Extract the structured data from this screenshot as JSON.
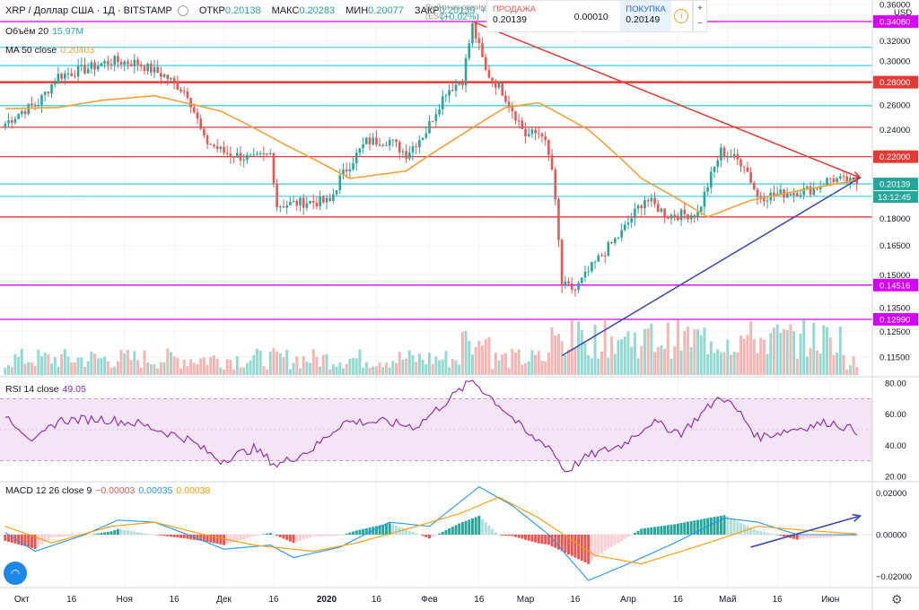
{
  "header": {
    "symbol": "XRP / Доллар США · 1Д · BITSTAMP",
    "open_label": "ОТКР",
    "open": "0.20138",
    "high_label": "МАКС",
    "high": "0.20283",
    "low_label": "МИН",
    "low": "0.20077",
    "close_label": "ЗАКР",
    "close": "0.20139",
    "change": "+0.00",
    "change_pct": "(+0.02%)",
    "esc_hint_line1": "Выйти из режима",
    "esc_hint_line2": "(ESC)"
  },
  "trade_panel": {
    "sell_label": "ПРОДАЖА",
    "sell_price": "0.20139",
    "spread": "0.00010",
    "buy_label": "ПОКУПКА",
    "buy_price": "0.20149",
    "info_symbol": "i",
    "plus": "+",
    "minus": "−"
  },
  "currency": "USD",
  "indicators": {
    "volume": {
      "label": "Объём 20",
      "value": "15.97M"
    },
    "ma": {
      "label": "MA 50 close",
      "value": "0.20403"
    },
    "rsi": {
      "label": "RSI 14 close",
      "value": "49.05"
    },
    "macd": {
      "label": "MACD 12 26 close 9",
      "v1": "−0.00003",
      "v2": "0.00035",
      "v3": "0.00038"
    }
  },
  "colors": {
    "up": "#26a69a",
    "down": "#ef5350",
    "ma": "#f2a13a",
    "red_line": "#e53935",
    "cyan_line": "#4dd0e1",
    "magenta_line": "#d500f9",
    "trend_down": "#e53935",
    "trend_up": "#3949ab",
    "rsi_line": "#8e24aa",
    "rsi_band": "#f3e5f5",
    "macd_line": "#2196f3",
    "signal_line": "#ff9800"
  },
  "chart_data": [
    {
      "type": "candlestick",
      "title": "XRP / Доллар США · 1Д · BITSTAMP",
      "ylim": [
        0.1,
        0.36
      ],
      "y_scale": "log",
      "y_ticks": [
        "0.36000",
        "0.34080",
        "0.32000",
        "0.30000",
        "0.28000",
        "0.26000",
        "0.24000",
        "0.22000",
        "0.20139",
        "0.18000",
        "0.16500",
        "0.15000",
        "0.14516",
        "0.13500",
        "0.12990",
        "0.12500",
        "0.11500"
      ],
      "highlighted_ticks": [
        {
          "value": 0.3408,
          "label": "0.34080",
          "color": "#d500f9"
        },
        {
          "value": 0.28,
          "label": "0.28000",
          "color": "#e53935"
        },
        {
          "value": 0.22,
          "label": "0.22000",
          "color": "#e53935"
        },
        {
          "value": 0.20139,
          "label": "0.20139",
          "color": "#26a69a"
        },
        {
          "value": 0.14516,
          "label": "0.14516",
          "color": "#d500f9"
        },
        {
          "value": 0.1299,
          "label": "0.12990",
          "color": "#d500f9"
        }
      ],
      "countdown": "13:12:45",
      "x_ticks": [
        "Окт",
        "16",
        "Ноя",
        "16",
        "Дек",
        "16",
        "2020",
        "16",
        "Фев",
        "16",
        "Мар",
        "16",
        "Апр",
        "16",
        "Май",
        "16",
        "Июн"
      ],
      "horizontal_levels": [
        {
          "value": 0.3408,
          "color": "#d500f9"
        },
        {
          "value": 0.3135,
          "color": "#4dd0e1"
        },
        {
          "value": 0.2955,
          "color": "#4dd0e1"
        },
        {
          "value": 0.28,
          "color": "#e53935"
        },
        {
          "value": 0.2595,
          "color": "#4dd0e1"
        },
        {
          "value": 0.242,
          "color": "#e53935"
        },
        {
          "value": 0.22,
          "color": "#e53935"
        },
        {
          "value": 0.20139,
          "color": "#4dd0e1"
        },
        {
          "value": 0.1935,
          "color": "#4dd0e1"
        },
        {
          "value": 0.181,
          "color": "#e53935"
        },
        {
          "value": 0.14516,
          "color": "#d500f9"
        },
        {
          "value": 0.1299,
          "color": "#d500f9"
        }
      ],
      "trend_lines": [
        {
          "from": [
            "2020-02-14",
            0.3408
          ],
          "to": [
            "2020-06-10",
            0.2055
          ],
          "color": "#e53935",
          "arrow": true
        },
        {
          "from": [
            "2020-03-12",
            0.1155
          ],
          "to": [
            "2020-06-10",
            0.2055
          ],
          "color": "#3949ab",
          "arrow": false
        }
      ],
      "close_series": {
        "start": "2019-09-26",
        "end": "2020-06-09",
        "keypoints": [
          [
            "2019-09-26",
            0.245
          ],
          [
            "2019-10-01",
            0.255
          ],
          [
            "2019-10-06",
            0.262
          ],
          [
            "2019-10-12",
            0.286
          ],
          [
            "2019-10-20",
            0.292
          ],
          [
            "2019-10-25",
            0.297
          ],
          [
            "2019-10-28",
            0.3
          ],
          [
            "2019-11-05",
            0.298
          ],
          [
            "2019-11-08",
            0.293
          ],
          [
            "2019-11-13",
            0.286
          ],
          [
            "2019-11-20",
            0.27
          ],
          [
            "2019-11-25",
            0.232
          ],
          [
            "2019-12-01",
            0.223
          ],
          [
            "2019-12-10",
            0.218
          ],
          [
            "2019-12-15",
            0.222
          ],
          [
            "2019-12-17",
            0.188
          ],
          [
            "2019-12-26",
            0.19
          ],
          [
            "2020-01-02",
            0.19
          ],
          [
            "2020-01-05",
            0.205
          ],
          [
            "2020-01-13",
            0.231
          ],
          [
            "2020-01-20",
            0.232
          ],
          [
            "2020-01-25",
            0.222
          ],
          [
            "2020-01-31",
            0.239
          ],
          [
            "2020-02-06",
            0.272
          ],
          [
            "2020-02-11",
            0.282
          ],
          [
            "2020-02-14",
            0.336
          ],
          [
            "2020-02-18",
            0.29
          ],
          [
            "2020-02-23",
            0.272
          ],
          [
            "2020-03-01",
            0.236
          ],
          [
            "2020-03-06",
            0.238
          ],
          [
            "2020-03-09",
            0.211
          ],
          [
            "2020-03-12",
            0.145
          ],
          [
            "2020-03-16",
            0.143
          ],
          [
            "2020-03-23",
            0.158
          ],
          [
            "2020-03-30",
            0.172
          ],
          [
            "2020-04-06",
            0.192
          ],
          [
            "2020-04-13",
            0.182
          ],
          [
            "2020-04-22",
            0.183
          ],
          [
            "2020-04-29",
            0.224
          ],
          [
            "2020-05-06",
            0.215
          ],
          [
            "2020-05-10",
            0.193
          ],
          [
            "2020-05-20",
            0.196
          ],
          [
            "2020-05-27",
            0.198
          ],
          [
            "2020-06-01",
            0.205
          ],
          [
            "2020-06-09",
            0.2014
          ]
        ]
      },
      "ma50_keypoints": [
        [
          "2019-09-26",
          0.257
        ],
        [
          "2019-10-12",
          0.258
        ],
        [
          "2019-10-25",
          0.264
        ],
        [
          "2019-11-10",
          0.268
        ],
        [
          "2019-11-30",
          0.255
        ],
        [
          "2019-12-20",
          0.228
        ],
        [
          "2020-01-08",
          0.205
        ],
        [
          "2020-01-25",
          0.21
        ],
        [
          "2020-02-10",
          0.235
        ],
        [
          "2020-02-24",
          0.258
        ],
        [
          "2020-03-05",
          0.262
        ],
        [
          "2020-03-20",
          0.24
        ],
        [
          "2020-04-05",
          0.205
        ],
        [
          "2020-04-25",
          0.181
        ],
        [
          "2020-05-08",
          0.191
        ],
        [
          "2020-05-25",
          0.198
        ],
        [
          "2020-06-09",
          0.204
        ]
      ]
    },
    {
      "type": "bar",
      "title": "Объём 20",
      "last_value": "15.97M"
    },
    {
      "type": "line",
      "title": "RSI 14 close",
      "last_value": 49.05,
      "ylim": [
        20,
        80
      ],
      "y_ticks": [
        "80.00",
        "60.00",
        "40.00",
        "20.00"
      ],
      "band": [
        30,
        70
      ],
      "keypoints": [
        [
          "2019-09-26",
          60
        ],
        [
          "2019-10-05",
          42
        ],
        [
          "2019-10-12",
          56
        ],
        [
          "2019-10-25",
          57
        ],
        [
          "2019-11-05",
          54
        ],
        [
          "2019-11-20",
          44
        ],
        [
          "2019-11-30",
          30
        ],
        [
          "2019-12-10",
          38
        ],
        [
          "2019-12-17",
          27
        ],
        [
          "2019-12-28",
          38
        ],
        [
          "2020-01-06",
          55
        ],
        [
          "2020-01-18",
          55
        ],
        [
          "2020-01-28",
          52
        ],
        [
          "2020-02-06",
          68
        ],
        [
          "2020-02-14",
          82
        ],
        [
          "2020-02-25",
          60
        ],
        [
          "2020-03-02",
          46
        ],
        [
          "2020-03-08",
          40
        ],
        [
          "2020-03-13",
          23
        ],
        [
          "2020-03-20",
          33
        ],
        [
          "2020-03-30",
          40
        ],
        [
          "2020-04-08",
          55
        ],
        [
          "2020-04-17",
          48
        ],
        [
          "2020-04-29",
          72
        ],
        [
          "2020-05-05",
          60
        ],
        [
          "2020-05-10",
          45
        ],
        [
          "2020-05-20",
          50
        ],
        [
          "2020-06-01",
          55
        ],
        [
          "2020-06-09",
          49.05
        ]
      ]
    },
    {
      "type": "line",
      "title": "MACD 12 26 close 9",
      "ylim": [
        -0.025,
        0.025
      ],
      "y_ticks": [
        "0.02000",
        "0.00000",
        "−0.02000"
      ],
      "macd_keypoints": [
        [
          "2019-09-26",
          0.001
        ],
        [
          "2019-10-05",
          -0.008
        ],
        [
          "2019-10-20",
          0.0
        ],
        [
          "2019-10-30",
          0.007
        ],
        [
          "2019-11-10",
          0.006
        ],
        [
          "2019-11-20",
          0.0
        ],
        [
          "2019-12-01",
          -0.007
        ],
        [
          "2019-12-15",
          -0.005
        ],
        [
          "2019-12-22",
          -0.011
        ],
        [
          "2020-01-05",
          -0.006
        ],
        [
          "2020-01-20",
          0.006
        ],
        [
          "2020-02-01",
          0.004
        ],
        [
          "2020-02-16",
          0.023
        ],
        [
          "2020-02-26",
          0.014
        ],
        [
          "2020-03-08",
          0.0
        ],
        [
          "2020-03-20",
          -0.022
        ],
        [
          "2020-04-01",
          -0.014
        ],
        [
          "2020-04-15",
          -0.004
        ],
        [
          "2020-04-30",
          0.008
        ],
        [
          "2020-05-10",
          0.006
        ],
        [
          "2020-05-22",
          0.0
        ],
        [
          "2020-06-09",
          -3e-05
        ]
      ],
      "signal_keypoints": [
        [
          "2019-09-26",
          0.004
        ],
        [
          "2019-10-10",
          -0.004
        ],
        [
          "2019-10-28",
          0.004
        ],
        [
          "2019-11-10",
          0.006
        ],
        [
          "2019-11-25",
          0.0
        ],
        [
          "2019-12-10",
          -0.005
        ],
        [
          "2019-12-28",
          -0.008
        ],
        [
          "2020-01-10",
          -0.004
        ],
        [
          "2020-01-28",
          0.004
        ],
        [
          "2020-02-10",
          0.01
        ],
        [
          "2020-02-22",
          0.018
        ],
        [
          "2020-03-05",
          0.008
        ],
        [
          "2020-03-22",
          -0.01
        ],
        [
          "2020-04-05",
          -0.014
        ],
        [
          "2020-04-25",
          -0.004
        ],
        [
          "2020-05-10",
          0.004
        ],
        [
          "2020-05-25",
          0.002
        ],
        [
          "2020-06-09",
          0.00035
        ]
      ],
      "trend_arrow": {
        "from": [
          "2020-05-08",
          -0.006
        ],
        "to": [
          "2020-06-10",
          0.009
        ]
      }
    }
  ]
}
